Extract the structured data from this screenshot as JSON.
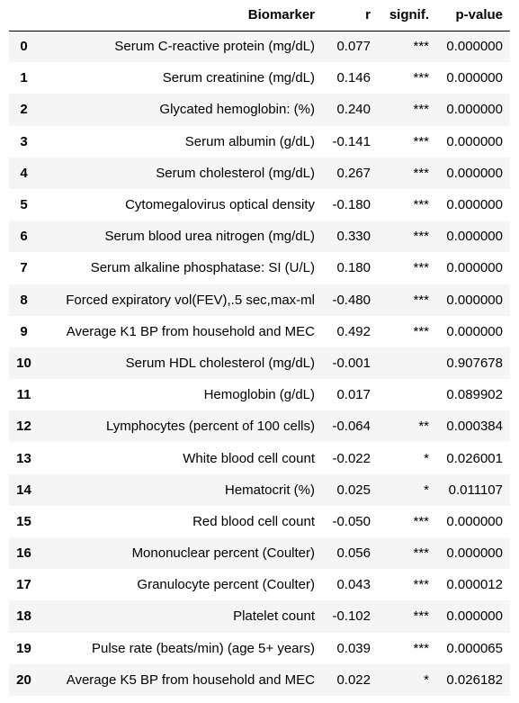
{
  "table": {
    "columns": {
      "index": "",
      "biomarker": "Biomarker",
      "r": "r",
      "signif": "signif.",
      "pvalue": "p-value"
    },
    "rows": [
      {
        "index": "0",
        "biomarker": "Serum C-reactive protein (mg/dL)",
        "r": "0.077",
        "signif": "***",
        "pvalue": "0.000000"
      },
      {
        "index": "1",
        "biomarker": "Serum creatinine (mg/dL)",
        "r": "0.146",
        "signif": "***",
        "pvalue": "0.000000"
      },
      {
        "index": "2",
        "biomarker": "Glycated hemoglobin: (%)",
        "r": "0.240",
        "signif": "***",
        "pvalue": "0.000000"
      },
      {
        "index": "3",
        "biomarker": "Serum albumin (g/dL)",
        "r": "-0.141",
        "signif": "***",
        "pvalue": "0.000000"
      },
      {
        "index": "4",
        "biomarker": "Serum cholesterol (mg/dL)",
        "r": "0.267",
        "signif": "***",
        "pvalue": "0.000000"
      },
      {
        "index": "5",
        "biomarker": "Cytomegalovirus optical density",
        "r": "-0.180",
        "signif": "***",
        "pvalue": "0.000000"
      },
      {
        "index": "6",
        "biomarker": "Serum blood urea nitrogen (mg/dL)",
        "r": "0.330",
        "signif": "***",
        "pvalue": "0.000000"
      },
      {
        "index": "7",
        "biomarker": "Serum alkaline phosphatase: SI (U/L)",
        "r": "0.180",
        "signif": "***",
        "pvalue": "0.000000"
      },
      {
        "index": "8",
        "biomarker": "Forced expiratory vol(FEV),.5 sec,max-ml",
        "r": "-0.480",
        "signif": "***",
        "pvalue": "0.000000"
      },
      {
        "index": "9",
        "biomarker": "Average K1 BP from household and MEC",
        "r": "0.492",
        "signif": "***",
        "pvalue": "0.000000"
      },
      {
        "index": "10",
        "biomarker": "Serum HDL cholesterol (mg/dL)",
        "r": "-0.001",
        "signif": "",
        "pvalue": "0.907678"
      },
      {
        "index": "11",
        "biomarker": "Hemoglobin (g/dL)",
        "r": "0.017",
        "signif": "",
        "pvalue": "0.089902"
      },
      {
        "index": "12",
        "biomarker": "Lymphocytes (percent of 100 cells)",
        "r": "-0.064",
        "signif": "**",
        "pvalue": "0.000384"
      },
      {
        "index": "13",
        "biomarker": "White blood cell count",
        "r": "-0.022",
        "signif": "*",
        "pvalue": "0.026001"
      },
      {
        "index": "14",
        "biomarker": "Hematocrit (%)",
        "r": "0.025",
        "signif": "*",
        "pvalue": "0.011107"
      },
      {
        "index": "15",
        "biomarker": "Red blood cell count",
        "r": "-0.050",
        "signif": "***",
        "pvalue": "0.000000"
      },
      {
        "index": "16",
        "biomarker": "Mononuclear percent (Coulter)",
        "r": "0.056",
        "signif": "***",
        "pvalue": "0.000000"
      },
      {
        "index": "17",
        "biomarker": "Granulocyte percent (Coulter)",
        "r": "0.043",
        "signif": "***",
        "pvalue": "0.000012"
      },
      {
        "index": "18",
        "biomarker": "Platelet count",
        "r": "-0.102",
        "signif": "***",
        "pvalue": "0.000000"
      },
      {
        "index": "19",
        "biomarker": "Pulse rate (beats/min) (age 5+ years)",
        "r": "0.039",
        "signif": "***",
        "pvalue": "0.000065"
      },
      {
        "index": "20",
        "biomarker": "Average K5 BP from household and MEC",
        "r": "0.022",
        "signif": "*",
        "pvalue": "0.026182"
      }
    ]
  },
  "colors": {
    "stripe": "#f5f5f5",
    "background": "#ffffff",
    "text": "#000000"
  }
}
